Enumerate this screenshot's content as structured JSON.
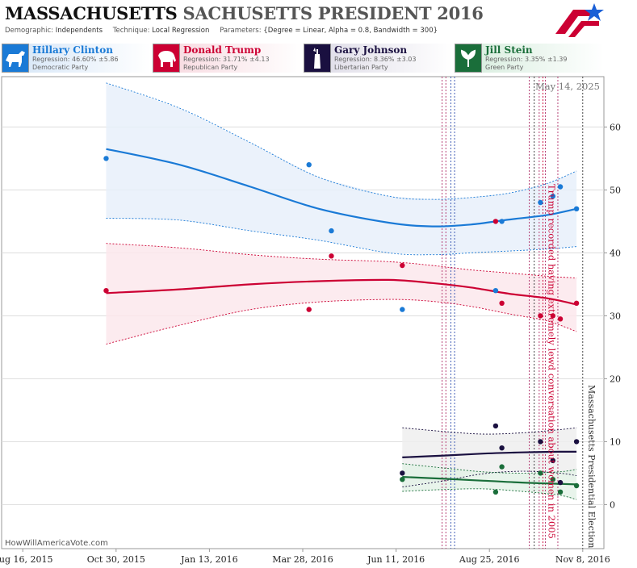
{
  "header": {
    "title_part1": "MASSACHUSETTS",
    "title_part2": "SACHUSETTS PRESIDENT 2016",
    "demographic_label": "Demographic:",
    "demographic_value": "Independents",
    "technique_label": "Technique:",
    "technique_value": "Local Regression",
    "parameters_label": "Parameters:",
    "parameters_value": "{Degree = Linear, Alpha = 0.8, Bandwidth = 300}"
  },
  "legend": [
    {
      "name": "Hillary Clinton",
      "regression": "Regression: 46.60% ±5.86",
      "party": "Democratic Party",
      "color": "#1a7ad6",
      "icon": "donkey-icon"
    },
    {
      "name": "Donald Trump",
      "regression": "Regression: 31.71% ±4.13",
      "party": "Republican Party",
      "color": "#cc0033",
      "icon": "elephant-icon"
    },
    {
      "name": "Gary Johnson",
      "regression": "Regression: 8.36% ±3.03",
      "party": "Libertarian Party",
      "color": "#1a1040",
      "icon": "liberty-icon"
    },
    {
      "name": "Jill Stein",
      "regression": "Regression: 3.35% ±1.39",
      "party": "Green Party",
      "color": "#1a6e3a",
      "icon": "leaf-icon"
    }
  ],
  "watermark": "HowWillAmericaVote.com",
  "chart_data": {
    "type": "scatter",
    "x_tick_labels": [
      "Aug 16, 2015",
      "Oct 30, 2015",
      "Jan 13, 2016",
      "Mar 28, 2016",
      "Jun 11, 2016",
      "Aug 25, 2016",
      "Nov 8, 2016"
    ],
    "x_ticks": [
      "2015-08-16",
      "2015-10-30",
      "2016-01-13",
      "2016-03-28",
      "2016-06-11",
      "2016-08-25",
      "2016-11-08"
    ],
    "xlim": [
      "2015-07-30",
      "2016-11-25"
    ],
    "ylim": [
      -7,
      68
    ],
    "y_ticks": [
      0,
      10,
      20,
      30,
      40,
      50,
      60
    ],
    "grid": "horizontal",
    "date_annotation": "May 14, 2025",
    "event_lines": [
      {
        "date": "2016-07-18",
        "color": "#b0306a"
      },
      {
        "date": "2016-07-21",
        "color": "#b0306a"
      },
      {
        "date": "2016-07-25",
        "color": "#3050b0"
      },
      {
        "date": "2016-07-28",
        "color": "#3050b0"
      },
      {
        "date": "2016-09-26",
        "color": "#b0306a"
      },
      {
        "date": "2016-09-30",
        "color": "#333333"
      },
      {
        "date": "2016-10-04",
        "color": "#b0306a"
      },
      {
        "date": "2016-10-07",
        "color": "#cc0033"
      },
      {
        "date": "2016-10-09",
        "color": "#b0306a"
      },
      {
        "date": "2016-10-19",
        "color": "#b0306a"
      },
      {
        "date": "2016-11-08",
        "color": "#333333"
      }
    ],
    "annotations": [
      {
        "text": "Trump recorded having extremely lewd conversation about women in 2005",
        "date": "2016-10-07",
        "color": "#cc0033"
      },
      {
        "text": "Massachusetts Presidential Election",
        "date": "2016-11-08",
        "color": "#333333"
      }
    ],
    "series": [
      {
        "name": "Hillary Clinton",
        "color": "#1a7ad6",
        "band_fill": "#e8f0fa",
        "points": [
          [
            "2015-10-22",
            55
          ],
          [
            "2016-04-02",
            54
          ],
          [
            "2016-04-20",
            43.5
          ],
          [
            "2016-06-16",
            31
          ],
          [
            "2016-08-30",
            34
          ],
          [
            "2016-09-04",
            45
          ],
          [
            "2016-10-05",
            48
          ],
          [
            "2016-10-15",
            49
          ],
          [
            "2016-10-21",
            50.5
          ],
          [
            "2016-11-03",
            47
          ]
        ],
        "trend": [
          [
            "2015-10-22",
            56.5
          ],
          [
            "2015-12-20",
            54
          ],
          [
            "2016-02-15",
            50.5
          ],
          [
            "2016-04-10",
            47
          ],
          [
            "2016-06-05",
            44.8
          ],
          [
            "2016-07-10",
            44.2
          ],
          [
            "2016-08-10",
            44.5
          ],
          [
            "2016-09-10",
            45.3
          ],
          [
            "2016-10-10",
            46
          ],
          [
            "2016-11-03",
            47
          ]
        ],
        "upper": [
          [
            "2015-10-22",
            67
          ],
          [
            "2015-12-20",
            63
          ],
          [
            "2016-02-15",
            57.5
          ],
          [
            "2016-04-10",
            52
          ],
          [
            "2016-06-05",
            49
          ],
          [
            "2016-07-10",
            48.5
          ],
          [
            "2016-08-10",
            48.8
          ],
          [
            "2016-09-10",
            49.5
          ],
          [
            "2016-10-10",
            51
          ],
          [
            "2016-11-03",
            53
          ]
        ],
        "lower": [
          [
            "2015-10-22",
            45.5
          ],
          [
            "2015-12-20",
            45.2
          ],
          [
            "2016-02-15",
            43.5
          ],
          [
            "2016-04-10",
            42
          ],
          [
            "2016-06-05",
            40
          ],
          [
            "2016-07-10",
            39.7
          ],
          [
            "2016-08-10",
            40
          ],
          [
            "2016-09-10",
            40.3
          ],
          [
            "2016-10-10",
            40.6
          ],
          [
            "2016-11-03",
            41
          ]
        ]
      },
      {
        "name": "Donald Trump",
        "color": "#cc0033",
        "band_fill": "#fbe7ec",
        "points": [
          [
            "2015-10-22",
            34
          ],
          [
            "2016-04-02",
            31
          ],
          [
            "2016-04-20",
            39.5
          ],
          [
            "2016-06-16",
            38
          ],
          [
            "2016-08-30",
            45
          ],
          [
            "2016-09-04",
            32
          ],
          [
            "2016-10-05",
            30
          ],
          [
            "2016-10-15",
            30
          ],
          [
            "2016-10-21",
            29.5
          ],
          [
            "2016-11-03",
            32
          ]
        ],
        "trend": [
          [
            "2015-10-22",
            33.6
          ],
          [
            "2015-12-20",
            34.2
          ],
          [
            "2016-02-15",
            35
          ],
          [
            "2016-04-10",
            35.5
          ],
          [
            "2016-06-05",
            35.7
          ],
          [
            "2016-07-10",
            35.2
          ],
          [
            "2016-08-10",
            34.5
          ],
          [
            "2016-09-10",
            33.5
          ],
          [
            "2016-10-10",
            32.8
          ],
          [
            "2016-11-03",
            31.8
          ]
        ],
        "upper": [
          [
            "2015-10-22",
            41.5
          ],
          [
            "2015-12-20",
            40.8
          ],
          [
            "2016-02-15",
            39.7
          ],
          [
            "2016-04-10",
            39
          ],
          [
            "2016-06-05",
            38.6
          ],
          [
            "2016-07-10",
            38
          ],
          [
            "2016-08-10",
            37.3
          ],
          [
            "2016-09-10",
            36.8
          ],
          [
            "2016-10-10",
            36.3
          ],
          [
            "2016-11-03",
            36
          ]
        ],
        "lower": [
          [
            "2015-10-22",
            25.5
          ],
          [
            "2015-12-20",
            28.5
          ],
          [
            "2016-02-15",
            31
          ],
          [
            "2016-04-10",
            32.2
          ],
          [
            "2016-06-05",
            32.6
          ],
          [
            "2016-07-10",
            32.3
          ],
          [
            "2016-08-10",
            31.5
          ],
          [
            "2016-09-10",
            30.3
          ],
          [
            "2016-10-10",
            29.2
          ],
          [
            "2016-11-03",
            27.5
          ]
        ]
      },
      {
        "name": "Gary Johnson",
        "color": "#1a1040",
        "band_fill": "#eeeeee",
        "points": [
          [
            "2016-06-16",
            5
          ],
          [
            "2016-08-30",
            12.5
          ],
          [
            "2016-09-04",
            9
          ],
          [
            "2016-10-05",
            10
          ],
          [
            "2016-10-15",
            7
          ],
          [
            "2016-10-21",
            3.5
          ],
          [
            "2016-11-03",
            10
          ]
        ],
        "trend": [
          [
            "2016-06-16",
            7.5
          ],
          [
            "2016-07-20",
            7.8
          ],
          [
            "2016-08-20",
            8.1
          ],
          [
            "2016-09-20",
            8.3
          ],
          [
            "2016-10-20",
            8.4
          ],
          [
            "2016-11-03",
            8.4
          ]
        ],
        "upper": [
          [
            "2016-06-16",
            12.2
          ],
          [
            "2016-07-20",
            11.6
          ],
          [
            "2016-08-20",
            11.2
          ],
          [
            "2016-09-20",
            11.4
          ],
          [
            "2016-10-20",
            11.9
          ],
          [
            "2016-11-03",
            12.2
          ]
        ],
        "lower": [
          [
            "2016-06-16",
            2.8
          ],
          [
            "2016-07-20",
            3.8
          ],
          [
            "2016-08-20",
            4.9
          ],
          [
            "2016-09-20",
            5.3
          ],
          [
            "2016-10-20",
            5
          ],
          [
            "2016-11-03",
            4.6
          ]
        ]
      },
      {
        "name": "Jill Stein",
        "color": "#1a6e3a",
        "band_fill": "#e4f2e8",
        "points": [
          [
            "2016-06-16",
            4
          ],
          [
            "2016-08-30",
            2
          ],
          [
            "2016-09-04",
            6
          ],
          [
            "2016-10-05",
            5
          ],
          [
            "2016-10-15",
            4
          ],
          [
            "2016-10-21",
            2
          ],
          [
            "2016-11-03",
            3
          ]
        ],
        "trend": [
          [
            "2016-06-16",
            4.4
          ],
          [
            "2016-07-20",
            4.1
          ],
          [
            "2016-08-20",
            3.8
          ],
          [
            "2016-09-20",
            3.5
          ],
          [
            "2016-10-20",
            3.3
          ],
          [
            "2016-11-03",
            3.2
          ]
        ],
        "upper": [
          [
            "2016-06-16",
            6.5
          ],
          [
            "2016-07-20",
            5.8
          ],
          [
            "2016-08-20",
            5.2
          ],
          [
            "2016-09-20",
            5
          ],
          [
            "2016-10-20",
            5.2
          ],
          [
            "2016-11-03",
            5.6
          ]
        ],
        "lower": [
          [
            "2016-06-16",
            2.1
          ],
          [
            "2016-07-20",
            2.4
          ],
          [
            "2016-08-20",
            2.5
          ],
          [
            "2016-09-20",
            2.1
          ],
          [
            "2016-10-20",
            1.5
          ],
          [
            "2016-11-03",
            0.8
          ]
        ]
      }
    ]
  }
}
